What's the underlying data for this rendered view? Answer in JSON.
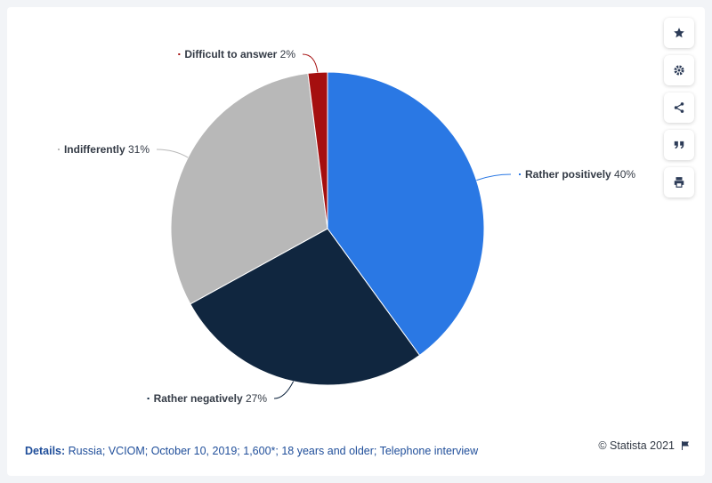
{
  "chart_data": {
    "type": "pie",
    "slices": [
      {
        "label": "Rather positively",
        "value": 40,
        "display": "40%",
        "color": "#2a78e4"
      },
      {
        "label": "Rather negatively",
        "value": 27,
        "display": "27%",
        "color": "#10263f"
      },
      {
        "label": "Indifferently",
        "value": 31,
        "display": "31%",
        "color": "#b8b8b8"
      },
      {
        "label": "Difficult to answer",
        "value": 2,
        "display": "2%",
        "color": "#a50f0f"
      }
    ],
    "start_angle_deg": 0,
    "direction": "clockwise"
  },
  "toolbar": {
    "items": [
      {
        "name": "star-icon"
      },
      {
        "name": "gear-icon"
      },
      {
        "name": "share-icon"
      },
      {
        "name": "quote-icon"
      },
      {
        "name": "print-icon"
      }
    ]
  },
  "footer": {
    "details_label": "Details:",
    "details_text": "Russia; VCIOM; October 10, 2019; 1,600*; 18 years and older; Telephone interview",
    "credit": "© Statista 2021",
    "flag_icon": "flag-icon"
  }
}
